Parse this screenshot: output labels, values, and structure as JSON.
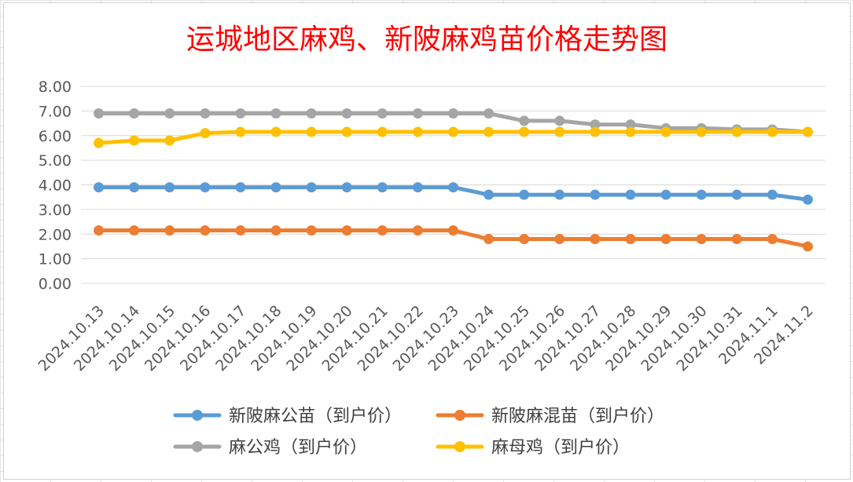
{
  "chart_data": {
    "type": "line",
    "title": "运城地区麻鸡、新陂麻鸡苗价格走势图",
    "xlabel": "",
    "ylabel": "",
    "ylim": [
      0,
      8
    ],
    "yticks": [
      "0.00",
      "1.00",
      "2.00",
      "3.00",
      "4.00",
      "5.00",
      "6.00",
      "7.00",
      "8.00"
    ],
    "grid": true,
    "legend_position": "bottom",
    "categories": [
      "2024.10.13",
      "2024.10.14",
      "2024.10.15",
      "2024.10.16",
      "2024.10.17",
      "2024.10.18",
      "2024.10.19",
      "2024.10.20",
      "2024.10.21",
      "2024.10.22",
      "2024.10.23",
      "2024.10.24",
      "2024.10.25",
      "2024.10.26",
      "2024.10.27",
      "2024.10.28",
      "2024.10.29",
      "2024.10.30",
      "2024.10.31",
      "2024.11.1",
      "2024.11.2"
    ],
    "series": [
      {
        "name": "新陂麻公苗（到户价）",
        "color": "#5B9BD5",
        "values": [
          3.9,
          3.9,
          3.9,
          3.9,
          3.9,
          3.9,
          3.9,
          3.9,
          3.9,
          3.9,
          3.9,
          3.6,
          3.6,
          3.6,
          3.6,
          3.6,
          3.6,
          3.6,
          3.6,
          3.6,
          3.4
        ]
      },
      {
        "name": "新陂麻混苗（到户价）",
        "color": "#ED7D31",
        "values": [
          2.15,
          2.15,
          2.15,
          2.15,
          2.15,
          2.15,
          2.15,
          2.15,
          2.15,
          2.15,
          2.15,
          1.8,
          1.8,
          1.8,
          1.8,
          1.8,
          1.8,
          1.8,
          1.8,
          1.8,
          1.5
        ]
      },
      {
        "name": "麻公鸡（到户价）",
        "color": "#A5A5A5",
        "values": [
          6.9,
          6.9,
          6.9,
          6.9,
          6.9,
          6.9,
          6.9,
          6.9,
          6.9,
          6.9,
          6.9,
          6.9,
          6.6,
          6.6,
          6.45,
          6.45,
          6.3,
          6.3,
          6.25,
          6.25,
          6.15
        ]
      },
      {
        "name": "麻母鸡（到户价）",
        "color": "#FFC000",
        "values": [
          5.7,
          5.8,
          5.8,
          6.1,
          6.15,
          6.15,
          6.15,
          6.15,
          6.15,
          6.15,
          6.15,
          6.15,
          6.15,
          6.15,
          6.15,
          6.15,
          6.15,
          6.15,
          6.15,
          6.15,
          6.15
        ]
      }
    ],
    "title_color": "#FF0000"
  }
}
